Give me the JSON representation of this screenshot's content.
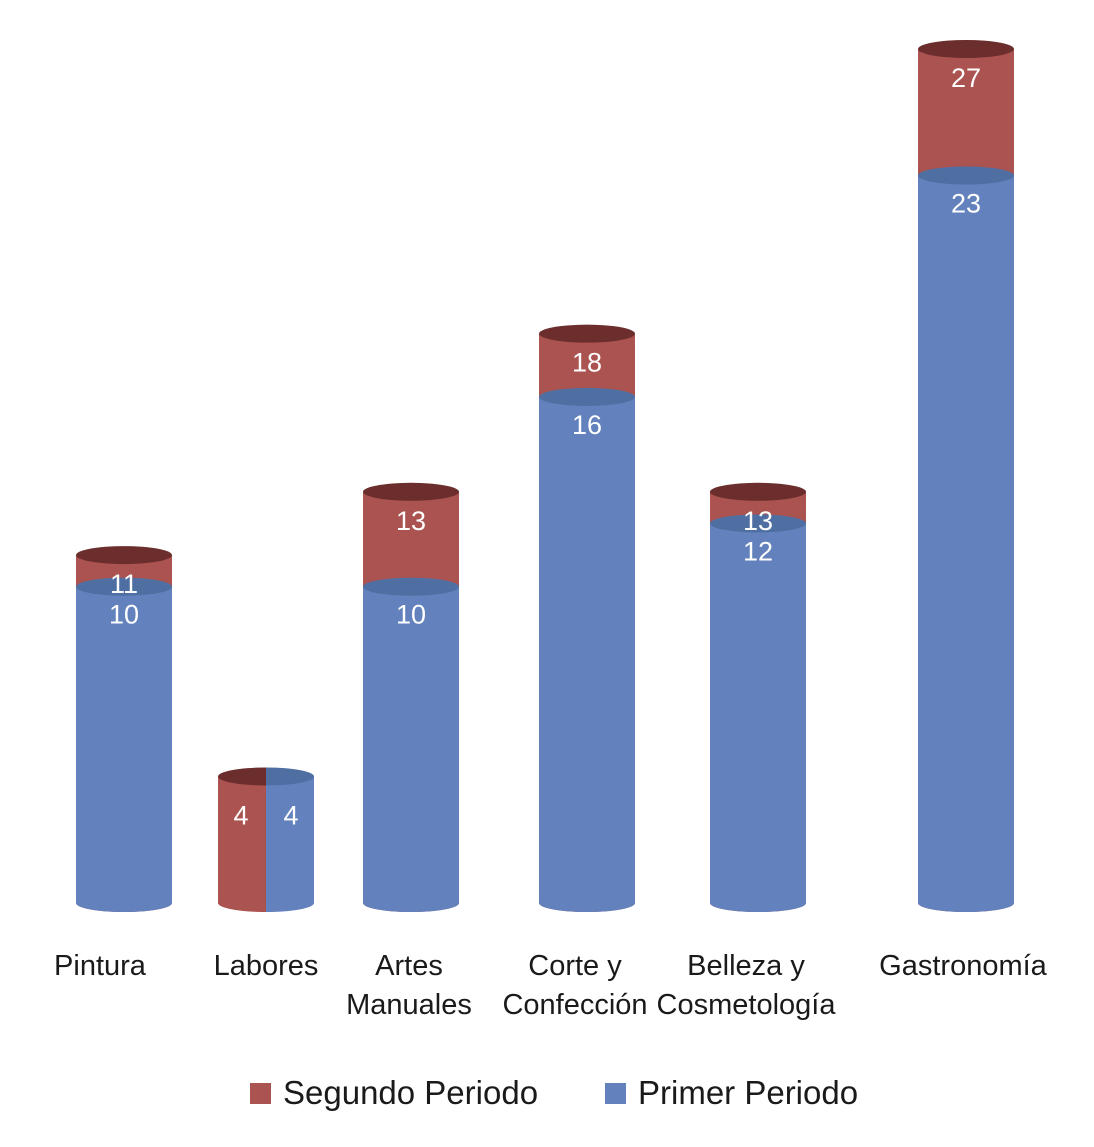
{
  "chart_data": {
    "type": "bar",
    "categories": [
      "Pintura",
      "Labores",
      "Artes Manuales",
      "Corte y Confección",
      "Belleza y Cosmetología",
      "Gastronomía"
    ],
    "category_lines": [
      [
        "Pintura"
      ],
      [
        "Labores"
      ],
      [
        "Artes",
        "Manuales"
      ],
      [
        "Corte y",
        "Confección"
      ],
      [
        "Belleza y",
        "Cosmetología"
      ],
      [
        "Gastronomía"
      ]
    ],
    "series": [
      {
        "name": "Primer Periodo",
        "values": [
          10,
          4,
          10,
          16,
          12,
          23
        ],
        "color": "#6281bd"
      },
      {
        "name": "Segundo Periodo",
        "values": [
          11,
          4,
          13,
          18,
          13,
          27
        ],
        "color": "#ab5350"
      }
    ],
    "bar_style": "cylinder, overlapping (second period drawn behind first); Labores shown split side by side",
    "ylim": [
      0,
      27
    ],
    "grid": false,
    "legend_position": "bottom",
    "legend_order": [
      "Segundo Periodo",
      "Primer Periodo"
    ]
  }
}
